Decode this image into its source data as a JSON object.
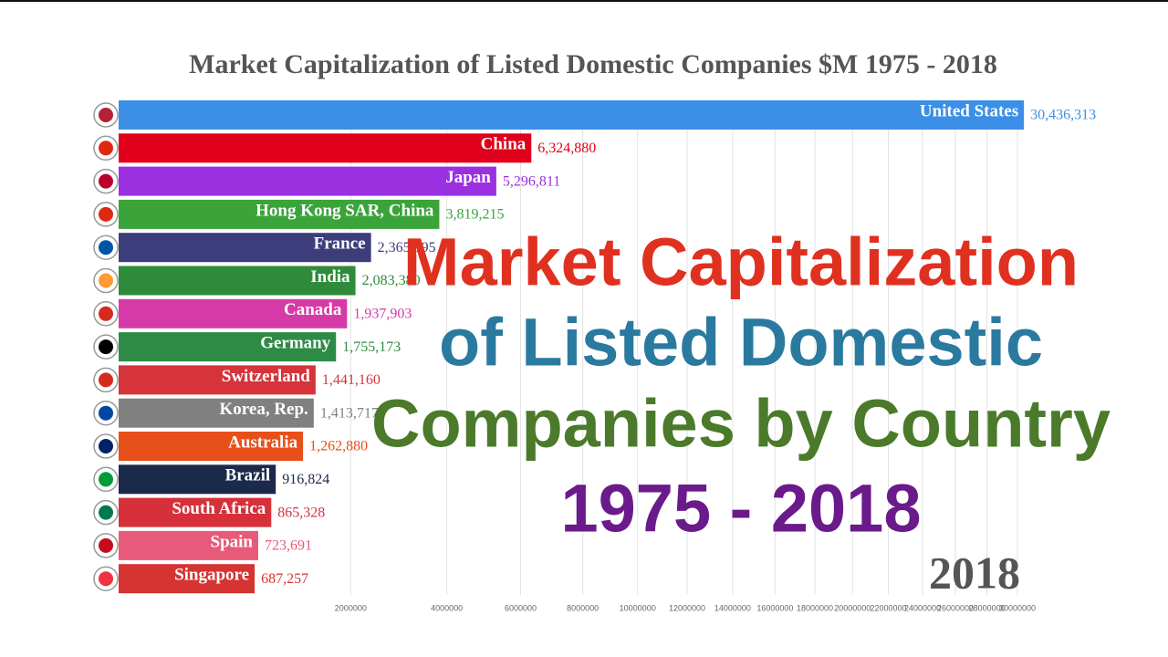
{
  "chart_data": {
    "type": "bar",
    "orientation": "horizontal",
    "title": "Market Capitalization of Listed Domestic Companies $M 1975 - 2018",
    "categories": [
      "United States",
      "China",
      "Japan",
      "Hong Kong SAR, China",
      "France",
      "India",
      "Canada",
      "Germany",
      "Switzerland",
      "Korea, Rep.",
      "Australia",
      "Brazil",
      "South Africa",
      "Spain",
      "Singapore"
    ],
    "values": [
      30436313,
      6324880,
      5296811,
      3819215,
      2365995,
      2083380,
      1937903,
      1755173,
      1441160,
      1413717,
      1262880,
      916824,
      865328,
      723691,
      687257
    ],
    "value_labels": [
      "30,436,313",
      "6,324,880",
      "5,296,811",
      "3,819,215",
      "2,365,995",
      "2,083,380",
      "1,937,903",
      "1,755,173",
      "1,441,160",
      "1,413,717",
      "1,262,880",
      "916,824",
      "865,328",
      "723,691",
      "687,257"
    ],
    "colors": [
      "#3b8fe6",
      "#e0001b",
      "#9b30e0",
      "#3aa33a",
      "#3d3d7c",
      "#2e8b3a",
      "#d63aa8",
      "#2e8b45",
      "#d6333a",
      "#808080",
      "#e8501a",
      "#1b2a4a",
      "#d6303a",
      "#e85a7a",
      "#d63333"
    ],
    "xscale": "sqrt",
    "xlim": [
      0,
      30000000
    ],
    "xticks": [
      2000000,
      4000000,
      6000000,
      8000000,
      10000000,
      12000000,
      14000000,
      16000000,
      18000000,
      20000000,
      22000000,
      24000000,
      26000000,
      28000000,
      30000000
    ],
    "grid": true,
    "year_label": "2018",
    "annotations": [
      {
        "text": "Market Capitalization",
        "color": "#e03020"
      },
      {
        "text": "of Listed Domestic",
        "color": "#2a7aa0"
      },
      {
        "text": "Companies by Country",
        "color": "#4a7a2a"
      },
      {
        "text": "1975 - 2018",
        "color": "#6a1a8a"
      }
    ]
  }
}
